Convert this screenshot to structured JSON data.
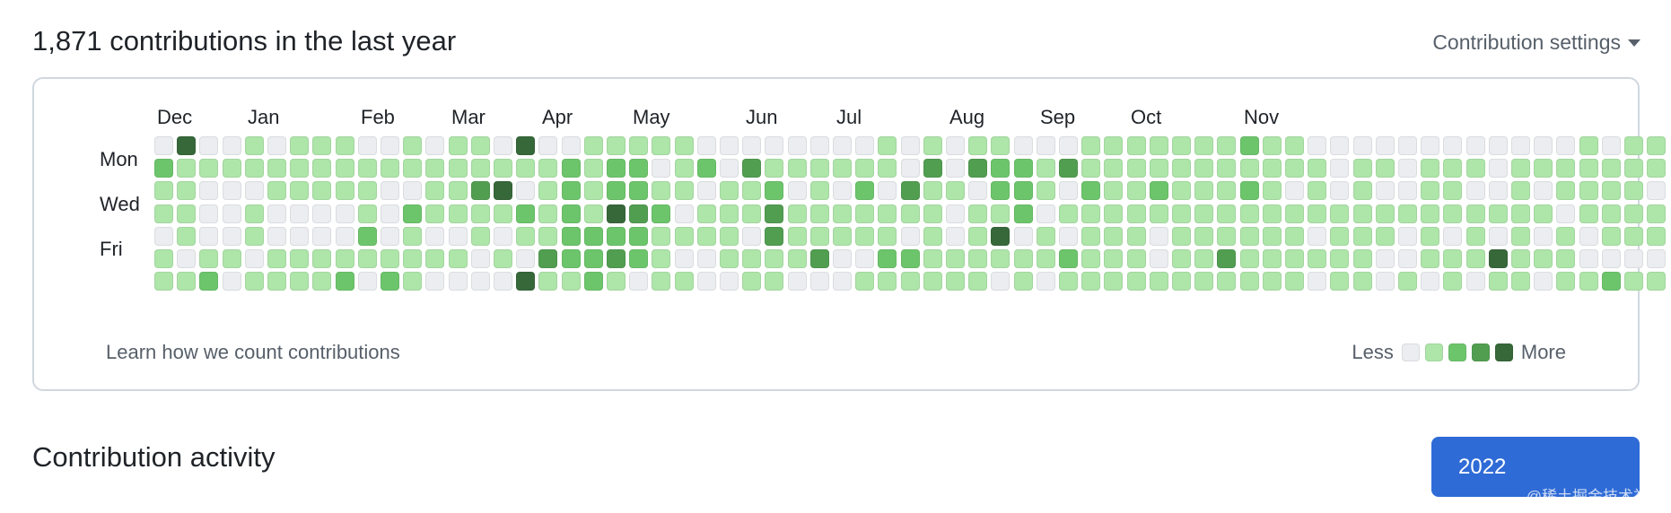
{
  "header": {
    "title": "1,871 contributions in the last year",
    "settings_label": "Contribution settings"
  },
  "calendar": {
    "months": [
      "Dec",
      "Jan",
      "Feb",
      "Mar",
      "Apr",
      "May",
      "Jun",
      "Jul",
      "Aug",
      "Sep",
      "Oct",
      "Nov"
    ],
    "month_start_weeks": [
      0,
      4,
      9,
      13,
      17,
      21,
      26,
      30,
      35,
      39,
      43,
      48
    ],
    "weekday_labels": [
      {
        "row": 1,
        "label": "Mon"
      },
      {
        "row": 3,
        "label": "Wed"
      },
      {
        "row": 5,
        "label": "Fri"
      }
    ],
    "level_colors": [
      "#ebedf0",
      "#aee5a9",
      "#6dc56b",
      "#529e51",
      "#37683a"
    ],
    "levels": [
      "0400101110010110400111110000000010101100011111112110000000000001011",
      "2111111111111111112122012031111110303221311111111111011011101111111",
      "1100011111001134012122110112010203110221021121112101010011001011110",
      "1100100001021111212143201113111111101120111111111111111111111101111",
      "0100100002010010112222111103111110101401011101111110111010101010111",
      "1011011111111101032232100111130022111111211101131111110011141110000",
      "1120111120210000411210110011000111111010111111111110110101011011211"
    ],
    "footer_link": "Learn how we count contributions",
    "legend_less": "Less",
    "legend_more": "More"
  },
  "activity": {
    "title": "Contribution activity",
    "year_button": "2022"
  },
  "watermark": "@稀土掘金技术社区"
}
